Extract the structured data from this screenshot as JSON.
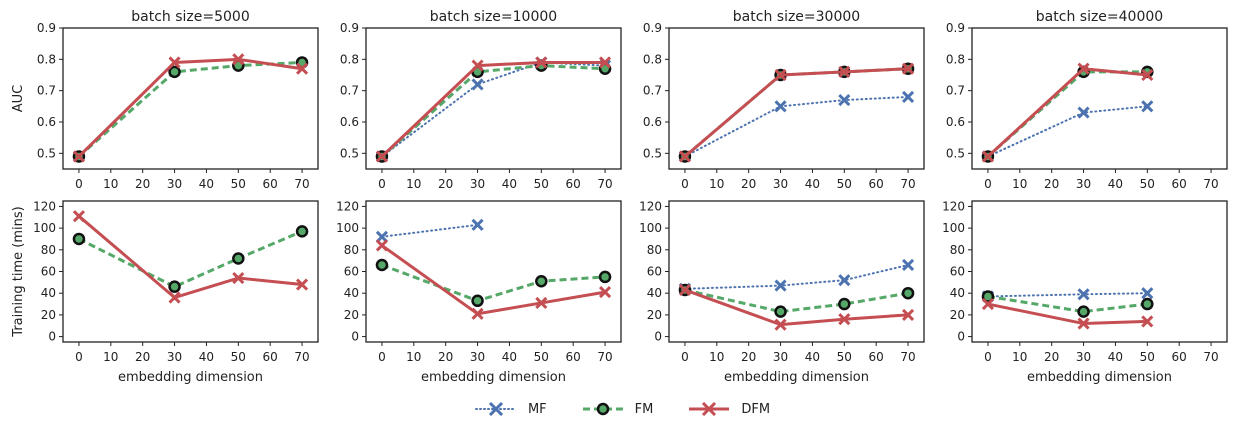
{
  "chart_data": {
    "type": "line",
    "grid_layout": "2x4",
    "legend": {
      "placement": "bottom-center",
      "entries": [
        "MF",
        "FM",
        "DFM"
      ]
    },
    "series_styles": {
      "MF": {
        "color": "#4C72B0",
        "line": "dotted",
        "marker": "x"
      },
      "FM": {
        "color": "#55A868",
        "line": "dashed",
        "marker": "circle"
      },
      "DFM": {
        "color": "#C44E52",
        "line": "solid",
        "marker": "x"
      }
    },
    "x_ticks": [
      0,
      10,
      20,
      30,
      40,
      50,
      60,
      70
    ],
    "xlim": [
      -5,
      75
    ],
    "xlabel": "embedding dimension",
    "rows": [
      {
        "ylabel": "AUC",
        "ylim": [
          0.45,
          0.9
        ],
        "yticks": [
          0.5,
          0.6,
          0.7,
          0.8,
          0.9
        ],
        "tick_format": "fixed1"
      },
      {
        "ylabel": "Training time (mins)",
        "ylim": [
          -5,
          125
        ],
        "yticks": [
          0,
          20,
          40,
          60,
          80,
          100,
          120
        ],
        "tick_format": "int"
      }
    ],
    "columns": [
      {
        "title": "batch size=5000"
      },
      {
        "title": "batch size=10000"
      },
      {
        "title": "batch size=30000"
      },
      {
        "title": "batch size=40000"
      }
    ],
    "panels": [
      {
        "row": 0,
        "col": 0,
        "series": [
          {
            "name": "MF",
            "x": [
              0
            ],
            "y": [
              0.49
            ]
          },
          {
            "name": "FM",
            "x": [
              0,
              30,
              50,
              70
            ],
            "y": [
              0.49,
              0.76,
              0.78,
              0.79
            ]
          },
          {
            "name": "DFM",
            "x": [
              0,
              30,
              50,
              70
            ],
            "y": [
              0.49,
              0.79,
              0.8,
              0.77
            ]
          }
        ]
      },
      {
        "row": 0,
        "col": 1,
        "series": [
          {
            "name": "MF",
            "x": [
              0,
              30,
              50,
              70
            ],
            "y": [
              0.49,
              0.72,
              0.79,
              0.78
            ]
          },
          {
            "name": "FM",
            "x": [
              0,
              30,
              50,
              70
            ],
            "y": [
              0.49,
              0.76,
              0.78,
              0.77
            ]
          },
          {
            "name": "DFM",
            "x": [
              0,
              30,
              50,
              70
            ],
            "y": [
              0.49,
              0.78,
              0.79,
              0.79
            ]
          }
        ]
      },
      {
        "row": 0,
        "col": 2,
        "series": [
          {
            "name": "MF",
            "x": [
              0,
              30,
              50,
              70
            ],
            "y": [
              0.49,
              0.65,
              0.67,
              0.68
            ]
          },
          {
            "name": "FM",
            "x": [
              0,
              30,
              50,
              70
            ],
            "y": [
              0.49,
              0.75,
              0.76,
              0.77
            ]
          },
          {
            "name": "DFM",
            "x": [
              0,
              30,
              50,
              70
            ],
            "y": [
              0.49,
              0.75,
              0.76,
              0.77
            ]
          }
        ]
      },
      {
        "row": 0,
        "col": 3,
        "series": [
          {
            "name": "MF",
            "x": [
              0,
              30,
              50
            ],
            "y": [
              0.49,
              0.63,
              0.65
            ]
          },
          {
            "name": "FM",
            "x": [
              0,
              30,
              50
            ],
            "y": [
              0.49,
              0.76,
              0.76
            ]
          },
          {
            "name": "DFM",
            "x": [
              0,
              30,
              50
            ],
            "y": [
              0.49,
              0.77,
              0.75
            ]
          }
        ]
      },
      {
        "row": 1,
        "col": 0,
        "series": [
          {
            "name": "FM",
            "x": [
              0,
              30,
              50,
              70
            ],
            "y": [
              90,
              46,
              72,
              97
            ]
          },
          {
            "name": "DFM",
            "x": [
              0,
              30,
              50,
              70
            ],
            "y": [
              111,
              36,
              54,
              48
            ]
          }
        ]
      },
      {
        "row": 1,
        "col": 1,
        "series": [
          {
            "name": "MF",
            "x": [
              0,
              30
            ],
            "y": [
              92,
              103
            ]
          },
          {
            "name": "FM",
            "x": [
              0,
              30,
              50,
              70
            ],
            "y": [
              66,
              33,
              51,
              55
            ]
          },
          {
            "name": "DFM",
            "x": [
              0,
              30,
              50,
              70
            ],
            "y": [
              84,
              21,
              31,
              41
            ]
          }
        ]
      },
      {
        "row": 1,
        "col": 2,
        "series": [
          {
            "name": "MF",
            "x": [
              0,
              30,
              50,
              70
            ],
            "y": [
              44,
              47,
              52,
              66
            ]
          },
          {
            "name": "FM",
            "x": [
              0,
              30,
              50,
              70
            ],
            "y": [
              43,
              23,
              30,
              40
            ]
          },
          {
            "name": "DFM",
            "x": [
              0,
              30,
              50,
              70
            ],
            "y": [
              43,
              11,
              16,
              20
            ]
          }
        ]
      },
      {
        "row": 1,
        "col": 3,
        "series": [
          {
            "name": "MF",
            "x": [
              0,
              30,
              50
            ],
            "y": [
              37,
              39,
              40
            ]
          },
          {
            "name": "FM",
            "x": [
              0,
              30,
              50
            ],
            "y": [
              37,
              23,
              30
            ]
          },
          {
            "name": "DFM",
            "x": [
              0,
              30,
              50
            ],
            "y": [
              30,
              12,
              14
            ]
          }
        ]
      }
    ]
  }
}
